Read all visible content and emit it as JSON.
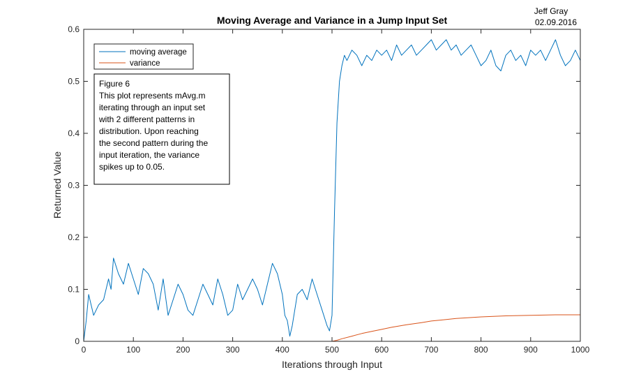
{
  "header": {
    "author": "Jeff Gray",
    "date": "02.09.2016"
  },
  "chart_data": {
    "type": "line",
    "title": "Moving Average and Variance in a Jump Input Set",
    "xlabel": "Iterations through Input",
    "ylabel": "Returned Value",
    "xlim": [
      0,
      1000
    ],
    "ylim": [
      0,
      0.6
    ],
    "xticks": [
      "0",
      "100",
      "200",
      "300",
      "400",
      "500",
      "600",
      "700",
      "800",
      "900",
      "1000"
    ],
    "yticks": [
      "0",
      "0.1",
      "0.2",
      "0.3",
      "0.4",
      "0.5",
      "0.6"
    ],
    "grid": false,
    "legend_position": "top-left",
    "legend": [
      "moving average",
      "variance"
    ],
    "series": [
      {
        "name": "moving average",
        "color": "#0072BD",
        "x": [
          0,
          5,
          10,
          20,
          30,
          40,
          50,
          55,
          60,
          70,
          80,
          90,
          100,
          110,
          120,
          130,
          140,
          150,
          160,
          170,
          180,
          190,
          200,
          210,
          220,
          230,
          240,
          250,
          260,
          270,
          280,
          290,
          300,
          310,
          320,
          330,
          340,
          350,
          360,
          370,
          380,
          390,
          400,
          405,
          410,
          415,
          420,
          430,
          440,
          450,
          460,
          470,
          480,
          490,
          495,
          500,
          505,
          510,
          515,
          520,
          525,
          530,
          540,
          550,
          560,
          570,
          580,
          590,
          600,
          610,
          620,
          630,
          640,
          650,
          660,
          670,
          680,
          690,
          700,
          710,
          720,
          730,
          740,
          750,
          760,
          770,
          780,
          790,
          800,
          810,
          820,
          830,
          840,
          850,
          860,
          870,
          880,
          890,
          900,
          910,
          920,
          930,
          940,
          950,
          960,
          970,
          980,
          990,
          1000
        ],
        "y": [
          0,
          0.04,
          0.09,
          0.05,
          0.07,
          0.08,
          0.12,
          0.1,
          0.16,
          0.13,
          0.11,
          0.15,
          0.12,
          0.09,
          0.14,
          0.13,
          0.11,
          0.06,
          0.12,
          0.05,
          0.08,
          0.11,
          0.09,
          0.06,
          0.05,
          0.08,
          0.11,
          0.09,
          0.07,
          0.12,
          0.09,
          0.05,
          0.06,
          0.11,
          0.08,
          0.1,
          0.12,
          0.1,
          0.07,
          0.11,
          0.15,
          0.13,
          0.09,
          0.05,
          0.04,
          0.01,
          0.03,
          0.09,
          0.1,
          0.08,
          0.12,
          0.09,
          0.06,
          0.03,
          0.02,
          0.05,
          0.25,
          0.42,
          0.5,
          0.53,
          0.55,
          0.54,
          0.56,
          0.55,
          0.53,
          0.55,
          0.54,
          0.56,
          0.55,
          0.56,
          0.54,
          0.57,
          0.55,
          0.56,
          0.57,
          0.55,
          0.56,
          0.57,
          0.58,
          0.56,
          0.57,
          0.58,
          0.56,
          0.57,
          0.55,
          0.56,
          0.57,
          0.55,
          0.53,
          0.54,
          0.56,
          0.53,
          0.52,
          0.55,
          0.56,
          0.54,
          0.55,
          0.53,
          0.56,
          0.55,
          0.56,
          0.54,
          0.56,
          0.58,
          0.55,
          0.53,
          0.54,
          0.56,
          0.54
        ]
      },
      {
        "name": "variance",
        "color": "#D95319",
        "x": [
          0,
          100,
          200,
          300,
          400,
          500,
          510,
          520,
          540,
          560,
          580,
          600,
          620,
          650,
          680,
          700,
          720,
          750,
          800,
          850,
          900,
          950,
          1000
        ],
        "y": [
          0,
          0,
          0,
          0,
          0,
          0,
          0.002,
          0.005,
          0.01,
          0.015,
          0.019,
          0.023,
          0.027,
          0.032,
          0.036,
          0.039,
          0.041,
          0.044,
          0.047,
          0.049,
          0.05,
          0.051,
          0.051
        ]
      }
    ],
    "annotation": {
      "lines": [
        "Figure 6",
        "This plot represents mAvg.m",
        "iterating through an input set",
        "with 2 different patterns in",
        "distribution. Upon reaching",
        "the second pattern during the",
        "input iteration, the variance",
        "spikes up to 0.05."
      ]
    }
  }
}
